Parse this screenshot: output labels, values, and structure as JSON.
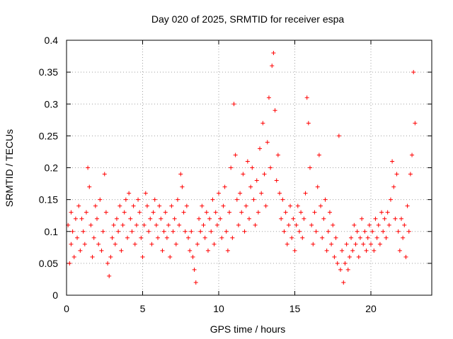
{
  "chart_data": {
    "type": "scatter",
    "title": "Day 020 of 2025, SRMTID for receiver espa",
    "xlabel": "GPS time / hours",
    "ylabel": "SRMTID / TECUs",
    "xlim": [
      0,
      24
    ],
    "ylim": [
      0,
      0.4
    ],
    "xticks": [
      0,
      5,
      10,
      15,
      20
    ],
    "xtick_labels": [
      "0",
      "5",
      "10",
      "15",
      "20"
    ],
    "yticks": [
      0,
      0.05,
      0.1,
      0.15,
      0.2,
      0.25,
      0.3,
      0.35,
      0.4
    ],
    "ytick_labels": [
      "0",
      "0.05",
      "0.1",
      "0.15",
      "0.2",
      "0.25",
      "0.3",
      "0.35",
      "0.4"
    ],
    "grid": true,
    "marker": "+",
    "color": "#ff0000",
    "series": [
      {
        "name": "SRMTID",
        "points": [
          [
            0.1,
            0.11
          ],
          [
            0.2,
            0.05
          ],
          [
            0.3,
            0.08
          ],
          [
            0.3,
            0.13
          ],
          [
            0.4,
            0.1
          ],
          [
            0.5,
            0.06
          ],
          [
            0.6,
            0.12
          ],
          [
            0.7,
            0.09
          ],
          [
            0.8,
            0.14
          ],
          [
            0.9,
            0.07
          ],
          [
            1.0,
            0.12
          ],
          [
            1.1,
            0.1
          ],
          [
            1.2,
            0.08
          ],
          [
            1.3,
            0.13
          ],
          [
            1.4,
            0.2
          ],
          [
            1.5,
            0.17
          ],
          [
            1.6,
            0.11
          ],
          [
            1.7,
            0.06
          ],
          [
            1.8,
            0.09
          ],
          [
            1.9,
            0.14
          ],
          [
            2.0,
            0.12
          ],
          [
            2.1,
            0.08
          ],
          [
            2.2,
            0.15
          ],
          [
            2.3,
            0.07
          ],
          [
            2.4,
            0.1
          ],
          [
            2.5,
            0.19
          ],
          [
            2.6,
            0.13
          ],
          [
            2.7,
            0.05
          ],
          [
            2.8,
            0.03
          ],
          [
            2.9,
            0.06
          ],
          [
            3.0,
            0.09
          ],
          [
            3.1,
            0.11
          ],
          [
            3.2,
            0.08
          ],
          [
            3.3,
            0.12
          ],
          [
            3.4,
            0.1
          ],
          [
            3.5,
            0.14
          ],
          [
            3.6,
            0.07
          ],
          [
            3.7,
            0.11
          ],
          [
            3.8,
            0.13
          ],
          [
            3.9,
            0.15
          ],
          [
            4.0,
            0.09
          ],
          [
            4.1,
            0.16
          ],
          [
            4.2,
            0.12
          ],
          [
            4.3,
            0.1
          ],
          [
            4.4,
            0.14
          ],
          [
            4.5,
            0.08
          ],
          [
            4.6,
            0.11
          ],
          [
            4.7,
            0.15
          ],
          [
            4.8,
            0.13
          ],
          [
            4.9,
            0.09
          ],
          [
            5.0,
            0.06
          ],
          [
            5.1,
            0.11
          ],
          [
            5.2,
            0.16
          ],
          [
            5.3,
            0.14
          ],
          [
            5.4,
            0.1
          ],
          [
            5.5,
            0.12
          ],
          [
            5.6,
            0.08
          ],
          [
            5.7,
            0.13
          ],
          [
            5.8,
            0.15
          ],
          [
            5.9,
            0.11
          ],
          [
            6.0,
            0.09
          ],
          [
            6.1,
            0.14
          ],
          [
            6.2,
            0.12
          ],
          [
            6.3,
            0.07
          ],
          [
            6.4,
            0.1
          ],
          [
            6.5,
            0.13
          ],
          [
            6.6,
            0.09
          ],
          [
            6.7,
            0.11
          ],
          [
            6.8,
            0.06
          ],
          [
            6.9,
            0.14
          ],
          [
            7.0,
            0.1
          ],
          [
            7.1,
            0.12
          ],
          [
            7.2,
            0.08
          ],
          [
            7.3,
            0.15
          ],
          [
            7.4,
            0.11
          ],
          [
            7.5,
            0.19
          ],
          [
            7.6,
            0.17
          ],
          [
            7.7,
            0.13
          ],
          [
            7.8,
            0.1
          ],
          [
            7.9,
            0.14
          ],
          [
            8.0,
            0.09
          ],
          [
            8.1,
            0.07
          ],
          [
            8.2,
            0.1
          ],
          [
            8.3,
            0.06
          ],
          [
            8.4,
            0.04
          ],
          [
            8.5,
            0.02
          ],
          [
            8.6,
            0.08
          ],
          [
            8.7,
            0.12
          ],
          [
            8.8,
            0.1
          ],
          [
            8.9,
            0.14
          ],
          [
            9.0,
            0.11
          ],
          [
            9.1,
            0.09
          ],
          [
            9.2,
            0.13
          ],
          [
            9.3,
            0.07
          ],
          [
            9.4,
            0.12
          ],
          [
            9.5,
            0.1
          ],
          [
            9.6,
            0.15
          ],
          [
            9.7,
            0.08
          ],
          [
            9.8,
            0.13
          ],
          [
            9.9,
            0.11
          ],
          [
            10.0,
            0.16
          ],
          [
            10.1,
            0.12
          ],
          [
            10.2,
            0.09
          ],
          [
            10.3,
            0.14
          ],
          [
            10.4,
            0.17
          ],
          [
            10.5,
            0.1
          ],
          [
            10.6,
            0.07
          ],
          [
            10.7,
            0.13
          ],
          [
            10.8,
            0.2
          ],
          [
            10.9,
            0.09
          ],
          [
            11.0,
            0.3
          ],
          [
            11.1,
            0.22
          ],
          [
            11.2,
            0.15
          ],
          [
            11.3,
            0.11
          ],
          [
            11.4,
            0.16
          ],
          [
            11.5,
            0.13
          ],
          [
            11.6,
            0.19
          ],
          [
            11.7,
            0.1
          ],
          [
            11.8,
            0.14
          ],
          [
            11.9,
            0.21
          ],
          [
            12.0,
            0.12
          ],
          [
            12.1,
            0.17
          ],
          [
            12.2,
            0.2
          ],
          [
            12.3,
            0.15
          ],
          [
            12.4,
            0.11
          ],
          [
            12.5,
            0.18
          ],
          [
            12.6,
            0.13
          ],
          [
            12.7,
            0.23
          ],
          [
            12.8,
            0.16
          ],
          [
            12.9,
            0.27
          ],
          [
            13.0,
            0.19
          ],
          [
            13.1,
            0.14
          ],
          [
            13.2,
            0.24
          ],
          [
            13.3,
            0.31
          ],
          [
            13.4,
            0.2
          ],
          [
            13.5,
            0.36
          ],
          [
            13.6,
            0.38
          ],
          [
            13.7,
            0.29
          ],
          [
            13.8,
            0.18
          ],
          [
            13.9,
            0.22
          ],
          [
            14.0,
            0.16
          ],
          [
            14.1,
            0.12
          ],
          [
            14.2,
            0.15
          ],
          [
            14.3,
            0.1
          ],
          [
            14.4,
            0.13
          ],
          [
            14.5,
            0.08
          ],
          [
            14.6,
            0.11
          ],
          [
            14.7,
            0.14
          ],
          [
            14.8,
            0.09
          ],
          [
            14.9,
            0.12
          ],
          [
            15.0,
            0.07
          ],
          [
            15.1,
            0.11
          ],
          [
            15.2,
            0.14
          ],
          [
            15.3,
            0.1
          ],
          [
            15.4,
            0.13
          ],
          [
            15.5,
            0.09
          ],
          [
            15.6,
            0.12
          ],
          [
            15.7,
            0.16
          ],
          [
            15.8,
            0.31
          ],
          [
            15.9,
            0.27
          ],
          [
            16.0,
            0.2
          ],
          [
            16.1,
            0.11
          ],
          [
            16.2,
            0.08
          ],
          [
            16.3,
            0.13
          ],
          [
            16.4,
            0.1
          ],
          [
            16.5,
            0.17
          ],
          [
            16.6,
            0.22
          ],
          [
            16.7,
            0.14
          ],
          [
            16.8,
            0.09
          ],
          [
            16.9,
            0.12
          ],
          [
            17.0,
            0.15
          ],
          [
            17.1,
            0.07
          ],
          [
            17.2,
            0.1
          ],
          [
            17.3,
            0.13
          ],
          [
            17.4,
            0.08
          ],
          [
            17.5,
            0.11
          ],
          [
            17.6,
            0.06
          ],
          [
            17.7,
            0.09
          ],
          [
            17.8,
            0.05
          ],
          [
            17.9,
            0.25
          ],
          [
            18.0,
            0.04
          ],
          [
            18.1,
            0.07
          ],
          [
            18.2,
            0.02
          ],
          [
            18.3,
            0.05
          ],
          [
            18.4,
            0.08
          ],
          [
            18.5,
            0.04
          ],
          [
            18.6,
            0.06
          ],
          [
            18.7,
            0.09
          ],
          [
            18.8,
            0.07
          ],
          [
            18.9,
            0.11
          ],
          [
            19.0,
            0.08
          ],
          [
            19.1,
            0.1
          ],
          [
            19.2,
            0.06
          ],
          [
            19.3,
            0.09
          ],
          [
            19.4,
            0.12
          ],
          [
            19.5,
            0.08
          ],
          [
            19.6,
            0.1
          ],
          [
            19.7,
            0.07
          ],
          [
            19.8,
            0.09
          ],
          [
            19.9,
            0.11
          ],
          [
            20.0,
            0.08
          ],
          [
            20.1,
            0.1
          ],
          [
            20.2,
            0.07
          ],
          [
            20.3,
            0.12
          ],
          [
            20.4,
            0.09
          ],
          [
            20.5,
            0.11
          ],
          [
            20.6,
            0.08
          ],
          [
            20.7,
            0.13
          ],
          [
            20.8,
            0.1
          ],
          [
            20.9,
            0.12
          ],
          [
            21.0,
            0.09
          ],
          [
            21.1,
            0.13
          ],
          [
            21.2,
            0.11
          ],
          [
            21.3,
            0.15
          ],
          [
            21.4,
            0.21
          ],
          [
            21.5,
            0.17
          ],
          [
            21.6,
            0.12
          ],
          [
            21.7,
            0.19
          ],
          [
            21.8,
            0.1
          ],
          [
            21.9,
            0.07
          ],
          [
            22.0,
            0.12
          ],
          [
            22.1,
            0.09
          ],
          [
            22.2,
            0.11
          ],
          [
            22.3,
            0.06
          ],
          [
            22.4,
            0.14
          ],
          [
            22.5,
            0.1
          ],
          [
            22.6,
            0.19
          ],
          [
            22.7,
            0.22
          ],
          [
            22.8,
            0.35
          ],
          [
            22.9,
            0.27
          ]
        ]
      }
    ]
  }
}
